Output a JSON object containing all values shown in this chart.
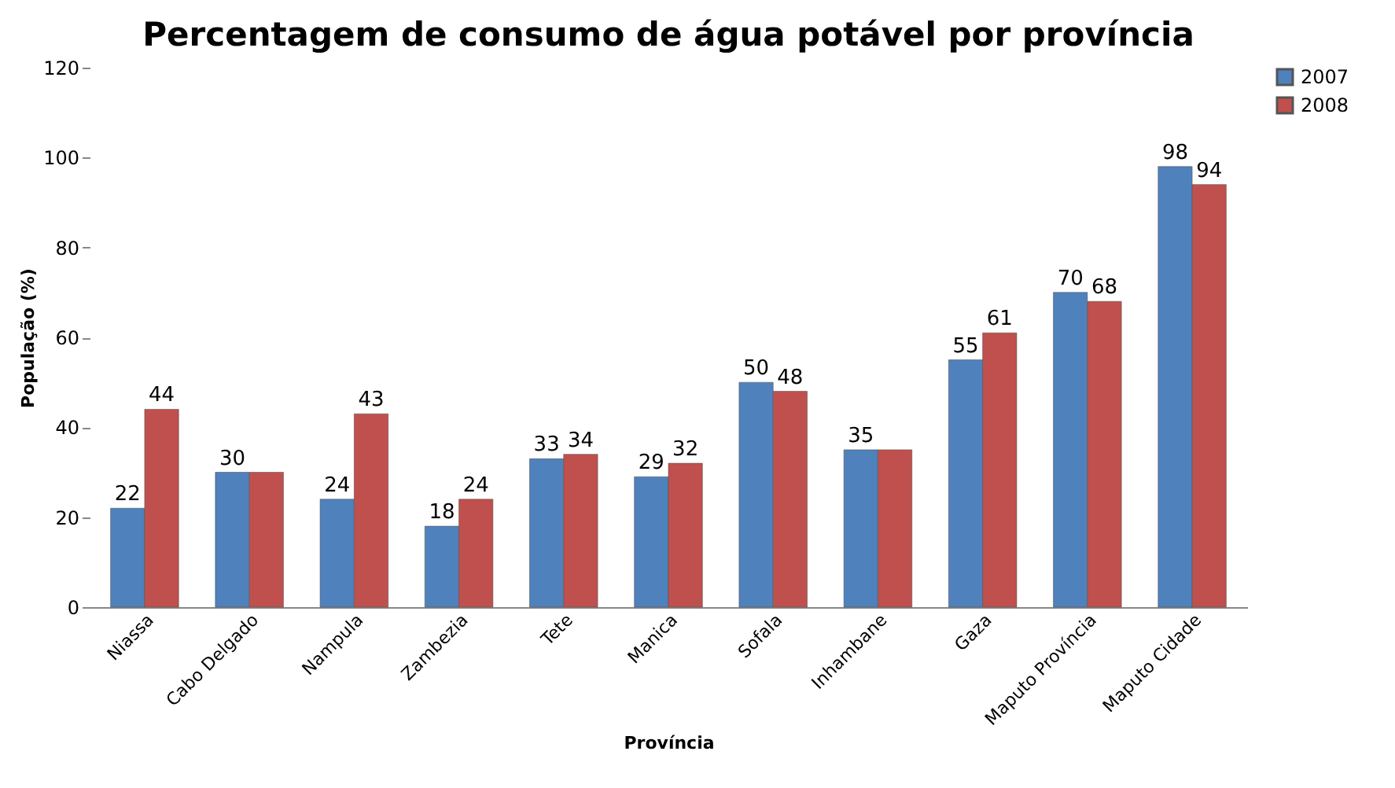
{
  "chart_data": {
    "type": "bar",
    "title": "Percentagem de consumo de água potável por província",
    "xlabel": "Província",
    "ylabel": "População (%)",
    "categories": [
      "Niassa",
      "Cabo Delgado",
      "Nampula",
      "Zambezia",
      "Tete",
      "Manica",
      "Sofala",
      "Inhambane",
      "Gaza",
      "Maputo Província",
      "Maputo Cidade"
    ],
    "series": [
      {
        "name": "2007",
        "color": "#4f81bd",
        "values": [
          22,
          30,
          24,
          18,
          33,
          29,
          50,
          35,
          55,
          70,
          98
        ],
        "value_labels": [
          "22",
          "30",
          "24",
          "18",
          "33",
          "29",
          "50",
          "35",
          "55",
          "70",
          "98"
        ]
      },
      {
        "name": "2008",
        "color": "#c0504d",
        "values": [
          44,
          30,
          43,
          24,
          34,
          32,
          48,
          35,
          61,
          68,
          94
        ],
        "value_labels": [
          "44",
          null,
          "43",
          "24",
          "34",
          "32",
          "48",
          null,
          "61",
          "68",
          "94"
        ]
      }
    ],
    "ylim": [
      0,
      120
    ],
    "yticks": [
      0,
      20,
      40,
      60,
      80,
      100,
      120
    ],
    "grid": false,
    "legend": "right"
  }
}
